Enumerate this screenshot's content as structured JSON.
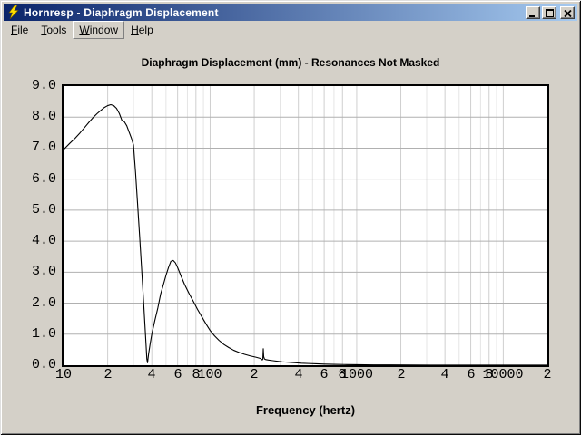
{
  "window": {
    "title": "Hornresp - Diaphragm Displacement",
    "icons": {
      "app": "lightning-bolt",
      "minimize": "underscore-bar",
      "maximize": "square-outline",
      "close": "x-cross"
    }
  },
  "menu": {
    "items": [
      {
        "label": "File",
        "underline": 0,
        "raised": false
      },
      {
        "label": "Tools",
        "underline": 0,
        "raised": false
      },
      {
        "label": "Window",
        "underline": 0,
        "raised": true
      },
      {
        "label": "Help",
        "underline": 0,
        "raised": false
      }
    ]
  },
  "colors": {
    "titlebar_left": "#0a246a",
    "titlebar_right": "#a6caf0",
    "chrome": "#d4d0c8",
    "plot_background": "#ffffff",
    "frame": "#000000",
    "grid_horizontal": "#b0b0b0",
    "grid_vertical_major": "#cfcfcf",
    "grid_vertical_minor": "#e5e5e5",
    "curve": "#000000",
    "title_text": "#ffffff"
  },
  "chart_data": {
    "type": "line",
    "title": "Diaphragm Displacement (mm) - Resonances Not Masked",
    "xlabel": "Frequency (hertz)",
    "ylabel": "",
    "x_scale": "log",
    "x_range": [
      10,
      20000
    ],
    "y_range": [
      0,
      9
    ],
    "grid": true,
    "legend": "none",
    "y_ticks": [
      {
        "value": 9,
        "label": "9.0"
      },
      {
        "value": 8,
        "label": "8.0"
      },
      {
        "value": 7,
        "label": "7.0"
      },
      {
        "value": 6,
        "label": "6.0"
      },
      {
        "value": 5,
        "label": "5.0"
      },
      {
        "value": 4,
        "label": "4.0"
      },
      {
        "value": 3,
        "label": "3.0"
      },
      {
        "value": 2,
        "label": "2.0"
      },
      {
        "value": 1,
        "label": "1.0"
      },
      {
        "value": 0,
        "label": "0.0"
      }
    ],
    "x_ticks": [
      {
        "f": 10,
        "label": "10"
      },
      {
        "f": 20,
        "label": "2"
      },
      {
        "f": 40,
        "label": "4"
      },
      {
        "f": 60,
        "label": "6"
      },
      {
        "f": 80,
        "label": "8"
      },
      {
        "f": 100,
        "label": "100"
      },
      {
        "f": 200,
        "label": "2"
      },
      {
        "f": 400,
        "label": "4"
      },
      {
        "f": 600,
        "label": "6"
      },
      {
        "f": 800,
        "label": "8"
      },
      {
        "f": 1000,
        "label": "1000"
      },
      {
        "f": 2000,
        "label": "2"
      },
      {
        "f": 4000,
        "label": "4"
      },
      {
        "f": 6000,
        "label": "6"
      },
      {
        "f": 8000,
        "label": "8"
      },
      {
        "f": 10000,
        "label": "10000"
      },
      {
        "f": 20000,
        "label": "2"
      }
    ],
    "points": [
      [
        10,
        6.95
      ],
      [
        11,
        7.15
      ],
      [
        12,
        7.32
      ],
      [
        13,
        7.5
      ],
      [
        14,
        7.68
      ],
      [
        15,
        7.85
      ],
      [
        16,
        8.0
      ],
      [
        17,
        8.12
      ],
      [
        18,
        8.22
      ],
      [
        19,
        8.31
      ],
      [
        20,
        8.37
      ],
      [
        21,
        8.4
      ],
      [
        22,
        8.37
      ],
      [
        23,
        8.28
      ],
      [
        24,
        8.12
      ],
      [
        25,
        7.9
      ],
      [
        26,
        7.85
      ],
      [
        27,
        7.72
      ],
      [
        28,
        7.52
      ],
      [
        29,
        7.33
      ],
      [
        30,
        7.1
      ],
      [
        31,
        6.2
      ],
      [
        32,
        5.2
      ],
      [
        33,
        4.2
      ],
      [
        34,
        3.2
      ],
      [
        35,
        2.2
      ],
      [
        36,
        1.2
      ],
      [
        36.5,
        0.7
      ],
      [
        37,
        0.2
      ],
      [
        37.4,
        0.08
      ],
      [
        38,
        0.35
      ],
      [
        39,
        0.7
      ],
      [
        40,
        1.0
      ],
      [
        42,
        1.45
      ],
      [
        44,
        1.85
      ],
      [
        46,
        2.3
      ],
      [
        48,
        2.6
      ],
      [
        50,
        2.9
      ],
      [
        52,
        3.15
      ],
      [
        54,
        3.35
      ],
      [
        56,
        3.38
      ],
      [
        58,
        3.3
      ],
      [
        60,
        3.15
      ],
      [
        63,
        2.9
      ],
      [
        67,
        2.6
      ],
      [
        72,
        2.3
      ],
      [
        77,
        2.05
      ],
      [
        82,
        1.8
      ],
      [
        88,
        1.55
      ],
      [
        94,
        1.32
      ],
      [
        100,
        1.12
      ],
      [
        107,
        0.95
      ],
      [
        115,
        0.8
      ],
      [
        124,
        0.67
      ],
      [
        134,
        0.57
      ],
      [
        145,
        0.48
      ],
      [
        158,
        0.41
      ],
      [
        172,
        0.35
      ],
      [
        188,
        0.3
      ],
      [
        205,
        0.26
      ],
      [
        220,
        0.22
      ],
      [
        227,
        0.17
      ],
      [
        229,
        0.2
      ],
      [
        230.5,
        0.53
      ],
      [
        232,
        0.28
      ],
      [
        235,
        0.2
      ],
      [
        240,
        0.18
      ],
      [
        250,
        0.165
      ],
      [
        265,
        0.15
      ],
      [
        285,
        0.13
      ],
      [
        310,
        0.11
      ],
      [
        340,
        0.095
      ],
      [
        375,
        0.08
      ],
      [
        420,
        0.065
      ],
      [
        470,
        0.055
      ],
      [
        530,
        0.045
      ],
      [
        600,
        0.035
      ],
      [
        700,
        0.028
      ],
      [
        820,
        0.022
      ],
      [
        1000,
        0.016
      ],
      [
        1300,
        0.011
      ],
      [
        1700,
        0.008
      ],
      [
        2300,
        0.005
      ],
      [
        3200,
        0.003
      ],
      [
        4600,
        0.002
      ],
      [
        7000,
        0.001
      ],
      [
        12000,
        0.001
      ],
      [
        20000,
        0.001
      ]
    ]
  }
}
